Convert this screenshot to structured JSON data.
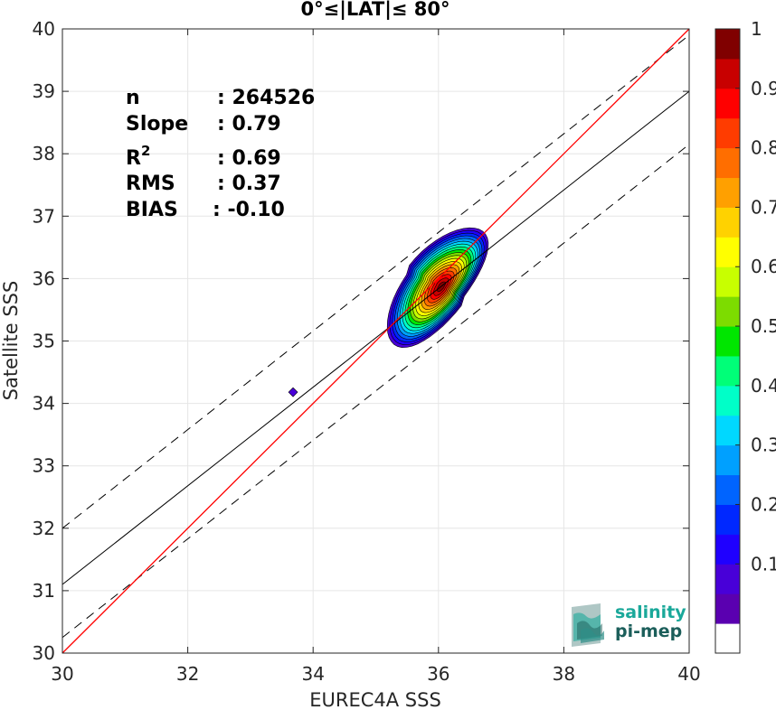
{
  "chart_data": {
    "type": "heatmap",
    "title": "0°≤|LAT|≤ 80°",
    "xlabel": "EUREC4A SSS",
    "ylabel": "Satellite SSS",
    "xlim": [
      30,
      40
    ],
    "ylim": [
      30,
      40
    ],
    "xticks": [
      "30",
      "32",
      "34",
      "36",
      "38",
      "40"
    ],
    "yticks": [
      "30",
      "31",
      "32",
      "33",
      "34",
      "35",
      "36",
      "37",
      "38",
      "39",
      "40"
    ],
    "grid": true,
    "stats": [
      {
        "label": "n",
        "value": ": 264526"
      },
      {
        "label": "Slope",
        "value": ": 0.79"
      },
      {
        "label": "R",
        "sup": "2",
        "value": ": 0.69"
      },
      {
        "label": "RMS",
        "value": ": 0.37"
      },
      {
        "label": "BIAS",
        "value": ": -0.10"
      }
    ],
    "lines": {
      "identity": {
        "color": "#ff0000",
        "slope": 1.0,
        "intercept": 0.0
      },
      "regression": {
        "color": "#000000",
        "slope": 0.79,
        "intercept": 31.1
      },
      "bounds": [
        {
          "slope": 0.79,
          "intercept": 32.0
        },
        {
          "slope": 0.79,
          "intercept": 30.25
        }
      ]
    },
    "density": {
      "center": [
        36.0,
        35.85
      ],
      "angle_deg": 52,
      "outer_radii": [
        1.15,
        0.5
      ],
      "levels": [
        0.05,
        0.1,
        0.15,
        0.2,
        0.25,
        0.3,
        0.35,
        0.4,
        0.45,
        0.5,
        0.55,
        0.6,
        0.65,
        0.7,
        0.75,
        0.8,
        0.85,
        0.9,
        0.95
      ],
      "outlier": [
        33.68,
        34.18
      ]
    },
    "colorbar": {
      "ticks": [
        "0.1",
        "0.2",
        "0.3",
        "0.4",
        "0.5",
        "0.6",
        "0.7",
        "0.8",
        "0.9",
        "1"
      ],
      "range": [
        0,
        1
      ],
      "colors": [
        "#ffffff",
        "#5a00b0",
        "#4800d8",
        "#1f00ff",
        "#0028ff",
        "#0064ff",
        "#00a0ff",
        "#00d8ff",
        "#00ffc8",
        "#00ff78",
        "#00e600",
        "#7ddc00",
        "#c8ff00",
        "#ffff00",
        "#ffd200",
        "#ffa000",
        "#ff6e00",
        "#ff3c00",
        "#ff0000",
        "#c80000",
        "#800000"
      ]
    }
  },
  "logo": {
    "line1": "salinity",
    "line2": "pi-mep"
  },
  "colors": {
    "identity": "#ff0000",
    "logo_teal": "#1aa89a",
    "logo_dark": "#1b5e5a"
  }
}
